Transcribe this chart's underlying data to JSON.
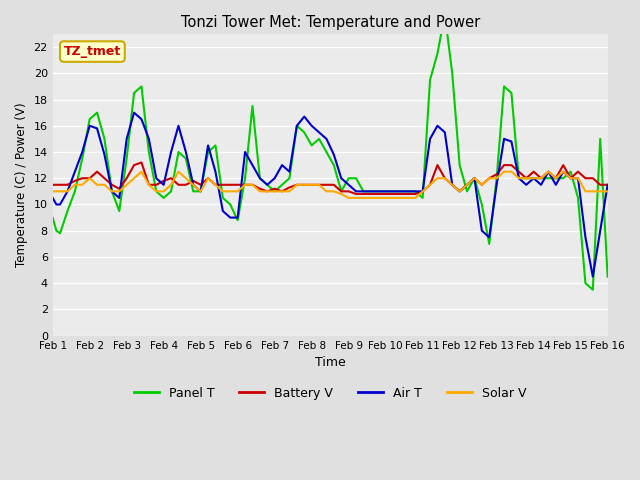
{
  "title": "Tonzi Tower Met: Temperature and Power",
  "xlabel": "Time",
  "ylabel": "Temperature (C) / Power (V)",
  "xlim": [
    0,
    15
  ],
  "ylim": [
    0,
    23
  ],
  "yticks": [
    0,
    2,
    4,
    6,
    8,
    10,
    12,
    14,
    16,
    18,
    20,
    22
  ],
  "xtick_labels": [
    "Feb 1",
    "Feb 2",
    "Feb 3",
    "Feb 4",
    "Feb 5",
    "Feb 6",
    "Feb 7",
    "Feb 8",
    "Feb 9",
    "Feb 10",
    "Feb 11",
    "Feb 12",
    "Feb 13",
    "Feb 14",
    "Feb 15",
    "Feb 16"
  ],
  "bg_color": "#e0e0e0",
  "plot_bg": "#ebebeb",
  "grid_color": "#ffffff",
  "annotation_text": "TZ_tmet",
  "annotation_color": "#cc0000",
  "annotation_bg": "#ffffcc",
  "annotation_border": "#ccaa00",
  "series": {
    "panel_t": {
      "label": "Panel T",
      "color": "#00cc00",
      "lw": 1.5
    },
    "battery_v": {
      "label": "Battery V",
      "color": "#cc0000",
      "lw": 1.5
    },
    "air_t": {
      "label": "Air T",
      "color": "#0000cc",
      "lw": 1.5
    },
    "solar_v": {
      "label": "Solar V",
      "color": "#ffaa00",
      "lw": 1.5
    }
  },
  "panel_t_x": [
    0,
    0.1,
    0.2,
    0.4,
    0.6,
    0.8,
    1.0,
    1.2,
    1.4,
    1.6,
    1.8,
    2.0,
    2.2,
    2.4,
    2.6,
    2.8,
    3.0,
    3.2,
    3.4,
    3.6,
    3.8,
    4.0,
    4.2,
    4.4,
    4.6,
    4.8,
    5.0,
    5.2,
    5.4,
    5.6,
    5.8,
    6.0,
    6.2,
    6.4,
    6.6,
    6.8,
    7.0,
    7.2,
    7.4,
    7.6,
    7.8,
    8.0,
    8.2,
    8.4,
    8.6,
    8.8,
    9.0,
    9.2,
    9.4,
    9.6,
    9.8,
    10.0,
    10.2,
    10.4,
    10.6,
    10.8,
    11.0,
    11.2,
    11.4,
    11.6,
    11.8,
    12.0,
    12.2,
    12.4,
    12.6,
    12.8,
    13.0,
    13.2,
    13.4,
    13.6,
    13.8,
    14.0,
    14.2,
    14.4,
    14.6,
    14.8,
    15.0
  ],
  "panel_t_y": [
    9.0,
    8.0,
    7.8,
    9.5,
    11.0,
    13.5,
    16.5,
    17.0,
    15.0,
    11.0,
    9.5,
    13.5,
    18.5,
    19.0,
    14.0,
    11.0,
    10.5,
    11.0,
    14.0,
    13.5,
    11.0,
    11.0,
    14.0,
    14.5,
    10.5,
    10.0,
    8.8,
    12.0,
    17.5,
    12.0,
    11.5,
    11.0,
    11.5,
    12.0,
    16.0,
    15.5,
    14.5,
    15.0,
    14.0,
    13.0,
    11.0,
    12.0,
    12.0,
    11.0,
    11.0,
    11.0,
    11.0,
    11.0,
    11.0,
    11.0,
    11.0,
    10.5,
    19.5,
    21.5,
    24.5,
    20.0,
    13.0,
    11.0,
    12.0,
    10.0,
    7.0,
    12.0,
    19.0,
    18.5,
    12.0,
    12.0,
    12.0,
    12.0,
    12.0,
    12.0,
    12.0,
    12.5,
    10.5,
    4.0,
    3.5,
    15.0,
    4.5
  ],
  "battery_v_x": [
    0,
    0.1,
    0.2,
    0.4,
    0.6,
    0.8,
    1.0,
    1.2,
    1.4,
    1.6,
    1.8,
    2.0,
    2.2,
    2.4,
    2.6,
    2.8,
    3.0,
    3.2,
    3.4,
    3.6,
    3.8,
    4.0,
    4.2,
    4.4,
    4.6,
    4.8,
    5.0,
    5.2,
    5.4,
    5.6,
    5.8,
    6.0,
    6.2,
    6.4,
    6.6,
    6.8,
    7.0,
    7.2,
    7.4,
    7.6,
    7.8,
    8.0,
    8.2,
    8.4,
    8.6,
    8.8,
    9.0,
    9.2,
    9.4,
    9.6,
    9.8,
    10.0,
    10.2,
    10.4,
    10.6,
    10.8,
    11.0,
    11.2,
    11.4,
    11.6,
    11.8,
    12.0,
    12.2,
    12.4,
    12.6,
    12.8,
    13.0,
    13.2,
    13.4,
    13.6,
    13.8,
    14.0,
    14.2,
    14.4,
    14.6,
    14.8,
    15.0
  ],
  "battery_v_y": [
    11.5,
    11.5,
    11.5,
    11.5,
    11.8,
    12.0,
    12.0,
    12.5,
    12.0,
    11.5,
    11.2,
    12.0,
    13.0,
    13.2,
    11.5,
    11.5,
    11.8,
    12.0,
    11.5,
    11.5,
    11.8,
    11.5,
    12.0,
    11.5,
    11.5,
    11.5,
    11.5,
    11.5,
    11.5,
    11.2,
    11.0,
    11.2,
    11.0,
    11.3,
    11.5,
    11.5,
    11.5,
    11.5,
    11.5,
    11.5,
    11.0,
    11.0,
    10.8,
    10.8,
    10.8,
    10.8,
    10.8,
    10.8,
    10.8,
    10.8,
    10.8,
    11.0,
    11.5,
    13.0,
    12.0,
    11.5,
    11.0,
    11.5,
    12.0,
    11.5,
    12.0,
    12.3,
    13.0,
    13.0,
    12.5,
    12.0,
    12.5,
    12.0,
    12.5,
    12.0,
    13.0,
    12.0,
    12.5,
    12.0,
    12.0,
    11.5,
    11.5
  ],
  "air_t_x": [
    0,
    0.1,
    0.2,
    0.4,
    0.6,
    0.8,
    1.0,
    1.2,
    1.4,
    1.6,
    1.8,
    2.0,
    2.2,
    2.4,
    2.6,
    2.8,
    3.0,
    3.2,
    3.4,
    3.6,
    3.8,
    4.0,
    4.2,
    4.4,
    4.6,
    4.8,
    5.0,
    5.2,
    5.4,
    5.6,
    5.8,
    6.0,
    6.2,
    6.4,
    6.6,
    6.8,
    7.0,
    7.2,
    7.4,
    7.6,
    7.8,
    8.0,
    8.2,
    8.4,
    8.6,
    8.8,
    9.0,
    9.2,
    9.4,
    9.6,
    9.8,
    10.0,
    10.2,
    10.4,
    10.6,
    10.8,
    11.0,
    11.2,
    11.4,
    11.6,
    11.8,
    12.0,
    12.2,
    12.4,
    12.6,
    12.8,
    13.0,
    13.2,
    13.4,
    13.6,
    13.8,
    14.0,
    14.2,
    14.4,
    14.6,
    14.8,
    15.0
  ],
  "air_t_y": [
    10.5,
    10.0,
    10.0,
    11.0,
    12.5,
    14.0,
    16.0,
    15.8,
    13.8,
    11.0,
    10.5,
    15.0,
    17.0,
    16.5,
    15.0,
    12.0,
    11.5,
    14.0,
    16.0,
    14.0,
    11.5,
    11.0,
    14.5,
    12.5,
    9.5,
    9.0,
    9.0,
    14.0,
    13.0,
    12.0,
    11.5,
    12.0,
    13.0,
    12.5,
    16.0,
    16.7,
    16.0,
    15.5,
    15.0,
    13.8,
    12.0,
    11.5,
    11.0,
    11.0,
    11.0,
    11.0,
    11.0,
    11.0,
    11.0,
    11.0,
    11.0,
    11.0,
    15.0,
    16.0,
    15.5,
    11.5,
    11.0,
    11.5,
    12.0,
    8.0,
    7.5,
    11.5,
    15.0,
    14.8,
    12.0,
    11.5,
    12.0,
    11.5,
    12.5,
    11.5,
    12.5,
    12.0,
    12.0,
    7.5,
    4.5,
    8.0,
    11.5
  ],
  "solar_v_x": [
    0,
    0.1,
    0.2,
    0.4,
    0.6,
    0.8,
    1.0,
    1.2,
    1.4,
    1.6,
    1.8,
    2.0,
    2.2,
    2.4,
    2.6,
    2.8,
    3.0,
    3.2,
    3.4,
    3.6,
    3.8,
    4.0,
    4.2,
    4.4,
    4.6,
    4.8,
    5.0,
    5.2,
    5.4,
    5.6,
    5.8,
    6.0,
    6.2,
    6.4,
    6.6,
    6.8,
    7.0,
    7.2,
    7.4,
    7.6,
    7.8,
    8.0,
    8.2,
    8.4,
    8.6,
    8.8,
    9.0,
    9.2,
    9.4,
    9.6,
    9.8,
    10.0,
    10.2,
    10.4,
    10.6,
    10.8,
    11.0,
    11.2,
    11.4,
    11.6,
    11.8,
    12.0,
    12.2,
    12.4,
    12.6,
    12.8,
    13.0,
    13.2,
    13.4,
    13.6,
    13.8,
    14.0,
    14.2,
    14.4,
    14.6,
    14.8,
    15.0
  ],
  "solar_v_y": [
    11.0,
    11.0,
    11.0,
    11.0,
    11.5,
    11.5,
    12.0,
    11.5,
    11.5,
    11.0,
    11.0,
    11.5,
    12.0,
    12.5,
    11.5,
    11.0,
    11.0,
    11.5,
    12.5,
    12.0,
    11.5,
    11.0,
    12.0,
    11.5,
    11.0,
    11.0,
    11.0,
    11.5,
    11.5,
    11.0,
    11.0,
    11.0,
    11.0,
    11.0,
    11.5,
    11.5,
    11.5,
    11.5,
    11.0,
    11.0,
    10.8,
    10.5,
    10.5,
    10.5,
    10.5,
    10.5,
    10.5,
    10.5,
    10.5,
    10.5,
    10.5,
    11.0,
    11.5,
    12.0,
    12.0,
    11.5,
    11.0,
    11.5,
    12.0,
    11.5,
    12.0,
    12.0,
    12.5,
    12.5,
    12.0,
    12.0,
    12.0,
    12.0,
    12.5,
    12.0,
    12.5,
    12.0,
    12.0,
    11.0,
    11.0,
    11.0,
    11.0
  ]
}
